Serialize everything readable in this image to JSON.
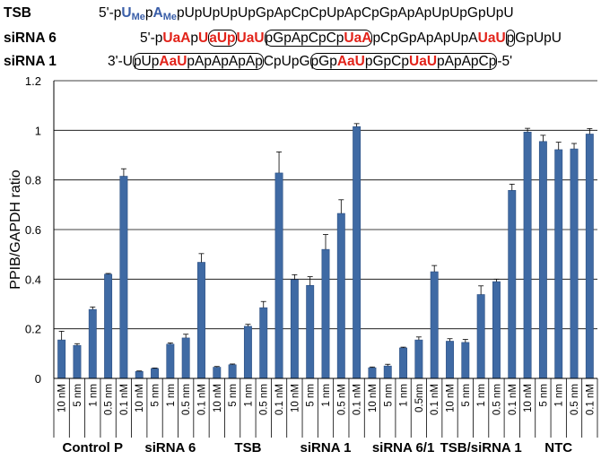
{
  "sequences": [
    {
      "name": "TSB",
      "segments": [
        {
          "t": "5'-p",
          "s": "plain"
        },
        {
          "t": "U",
          "s": "blue"
        },
        {
          "t": "Me",
          "s": "blue-sub"
        },
        {
          "t": "p",
          "s": "plain"
        },
        {
          "t": "A",
          "s": "blue"
        },
        {
          "t": "Me",
          "s": "blue-sub"
        },
        {
          "t": "pUpUpUpUpGpApCpCpUpApCpGpApApUpUpGpUpU",
          "s": "plain"
        }
      ]
    },
    {
      "name": "siRNA 6",
      "segments": [
        {
          "t": "5'-p",
          "s": "plain"
        },
        {
          "t": "UaA",
          "s": "red"
        },
        {
          "t": "p",
          "s": "plain"
        },
        {
          "t": "U",
          "s": "red"
        },
        {
          "t": "aUp",
          "s": "red-box"
        },
        {
          "t": "UaU",
          "s": "red"
        },
        {
          "t": "pGpApCpCp",
          "s": "box-start"
        },
        {
          "t": "UaA",
          "s": "red-box-end"
        },
        {
          "t": "pCpGpApApUpA",
          "s": "plain"
        },
        {
          "t": "UaU",
          "s": "red"
        },
        {
          "t": "p",
          "s": "box"
        },
        {
          "t": "GpUpU",
          "s": "plain"
        }
      ]
    },
    {
      "name": "siRNA 1",
      "segments": [
        {
          "t": "3'-U",
          "s": "plain"
        },
        {
          "t": "pUp",
          "s": "box-start"
        },
        {
          "t": "AaU",
          "s": "red-box-mid"
        },
        {
          "t": "pApApApAp",
          "s": "box-end"
        },
        {
          "t": "CpUpG",
          "s": "plain"
        },
        {
          "t": "pGp",
          "s": "box-start"
        },
        {
          "t": "AaU",
          "s": "red-box-mid"
        },
        {
          "t": "pGpCp",
          "s": "box-mid"
        },
        {
          "t": "UaU",
          "s": "red-box-mid"
        },
        {
          "t": "pApApCp",
          "s": "box-end"
        },
        {
          "t": "-5'",
          "s": "plain"
        }
      ]
    }
  ],
  "chart_data": {
    "type": "bar",
    "ylabel": "PPIB/GAPDH ratio",
    "xlabel": "",
    "ylim": [
      0,
      1.2
    ],
    "yticks": [
      "0",
      "0.2",
      "0.4",
      "0.6",
      "0.8",
      "1",
      "1.2"
    ],
    "grid": true,
    "bar_color": "#3f6aa4",
    "groups": [
      {
        "name": "Control P",
        "categories": [
          "10 nM",
          "5 nm",
          "1 nm",
          "0.5 nm",
          "0.1 nM"
        ],
        "values": [
          0.155,
          0.133,
          0.278,
          0.42,
          0.815
        ],
        "errors": [
          0.035,
          0.007,
          0.01,
          0.003,
          0.03
        ]
      },
      {
        "name": "siRNA 6",
        "categories": [
          "10 nM",
          "5 nm",
          "1 nm",
          "0.5 nm",
          "0.1 nM"
        ],
        "values": [
          0.028,
          0.04,
          0.138,
          0.163,
          0.468
        ],
        "errors": [
          0.002,
          0.002,
          0.005,
          0.015,
          0.035
        ]
      },
      {
        "name": "TSB",
        "categories": [
          "10 nM",
          "5 nm",
          "1 nm",
          "0.5 nm",
          "0.1 nM"
        ],
        "values": [
          0.045,
          0.055,
          0.21,
          0.285,
          0.828
        ],
        "errors": [
          0.003,
          0.003,
          0.008,
          0.025,
          0.085
        ]
      },
      {
        "name": "siRNA 1",
        "categories": [
          "10 nM",
          "5 nm",
          "1 nm",
          "0.5 nM",
          "0.1 nM"
        ],
        "values": [
          0.398,
          0.375,
          0.52,
          0.665,
          1.015
        ],
        "errors": [
          0.02,
          0.035,
          0.06,
          0.055,
          0.012
        ]
      },
      {
        "name": "siRNA 6/1",
        "categories": [
          "10 nM",
          "5 nm",
          "1 nm",
          "0.5nm",
          "0.1 nM"
        ],
        "values": [
          0.043,
          0.05,
          0.123,
          0.155,
          0.43
        ],
        "errors": [
          0.003,
          0.007,
          0.003,
          0.012,
          0.025
        ]
      },
      {
        "name": "TSB/siRNA 1",
        "categories": [
          "10 nM",
          "5 nm",
          "1 nm",
          "0.5 nm",
          "0.1 nM"
        ],
        "values": [
          0.15,
          0.145,
          0.338,
          0.39,
          0.758
        ],
        "errors": [
          0.01,
          0.012,
          0.035,
          0.01,
          0.025
        ]
      },
      {
        "name": "NTC",
        "categories": [
          "10 nM",
          "5 nm",
          "1 nm",
          "0.5 nm",
          "0.1 nM"
        ],
        "values": [
          0.993,
          0.955,
          0.922,
          0.925,
          0.985
        ],
        "errors": [
          0.015,
          0.025,
          0.03,
          0.022,
          0.022
        ]
      }
    ]
  }
}
